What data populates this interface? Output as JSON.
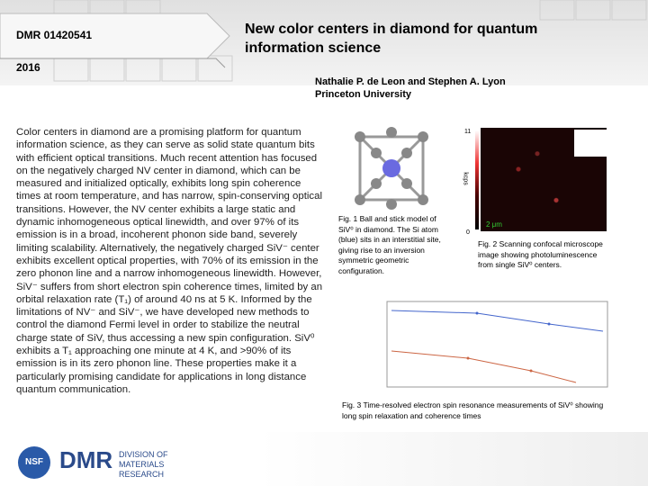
{
  "header": {
    "award": "DMR 01420541",
    "year": "2016",
    "title": "New color centers in diamond for quantum information science",
    "authors": "Nathalie P. de Leon and Stephen A. Lyon",
    "affiliation": "Princeton University"
  },
  "body": "Color centers in diamond are a promising platform for quantum information science, as they can serve as solid state quantum bits with efficient optical transitions. Much recent attention has focused on the negatively charged NV center in diamond, which can be measured and initialized optically, exhibits long spin coherence times at room temperature, and has narrow, spin-conserving optical transitions. However, the NV center exhibits a large static and dynamic inhomogeneous optical linewidth, and over 97% of its emission is in a broad, incoherent phonon side band, severely limiting scalability. Alternatively, the negatively charged SiV⁻ center exhibits excellent optical properties, with 70% of its emission in the zero phonon line and a narrow inhomogeneous linewidth. However, SiV⁻ suffers from short electron spin coherence times, limited by an orbital relaxation rate (T₁) of around 40 ns at 5 K. Informed by the limitations of NV⁻ and SiV⁻, we have developed new methods to control the diamond Fermi level in order to stabilize the neutral charge state of SiV, thus accessing a new spin configuration. SiV⁰ exhibits a T₁ approaching one minute at 4 K, and >90% of its emission is in its zero phonon line. These properties make it a particularly promising candidate for applications in long distance quantum communication.",
  "figures": [
    {
      "caption": "Fig. 1  Ball and stick model of SiV⁰ in diamond. The Si atom (blue) sits in an interstitial site, giving rise to an inversion symmetric geometric configuration."
    },
    {
      "caption": "Fig. 2  Scanning confocal microscope image showing photoluminescence from single SiV⁰ centers.",
      "scale_max": "11",
      "scale_min": "0",
      "scale_unit": "kcps",
      "scale_bar": "2 μm"
    },
    {
      "caption": "Fig. 3  Time-resolved electron spin resonance measurements of SiV⁰ showing long spin relaxation and coherence times"
    }
  ],
  "footer": {
    "nsf": "NSF",
    "dmr": "DMR",
    "division": "DIVISION OF MATERIALS RESEARCH"
  }
}
